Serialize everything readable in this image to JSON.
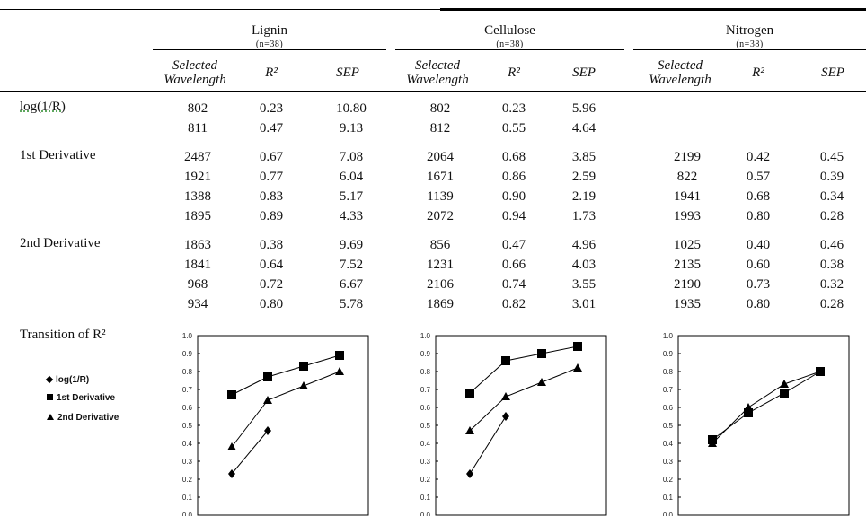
{
  "groups": [
    {
      "name": "Lignin",
      "n": "(n=38)"
    },
    {
      "name": "Cellulose",
      "n": "(n=38)"
    },
    {
      "name": "Nitrogen",
      "n": "(n=38)"
    }
  ],
  "subheaders": {
    "wavelength": "Selected Wavelength",
    "r2": "R²",
    "sep": "SEP"
  },
  "sections": [
    {
      "label": "log(1/R)",
      "rows": [
        [
          "802",
          "0.23",
          "10.80",
          "802",
          "0.23",
          "5.96",
          "",
          "",
          ""
        ],
        [
          "811",
          "0.47",
          "9.13",
          "812",
          "0.55",
          "4.64",
          "",
          "",
          ""
        ]
      ]
    },
    {
      "label": "1st Derivative",
      "rows": [
        [
          "2487",
          "0.67",
          "7.08",
          "2064",
          "0.68",
          "3.85",
          "2199",
          "0.42",
          "0.45"
        ],
        [
          "1921",
          "0.77",
          "6.04",
          "1671",
          "0.86",
          "2.59",
          "822",
          "0.57",
          "0.39"
        ],
        [
          "1388",
          "0.83",
          "5.17",
          "1139",
          "0.90",
          "2.19",
          "1941",
          "0.68",
          "0.34"
        ],
        [
          "1895",
          "0.89",
          "4.33",
          "2072",
          "0.94",
          "1.73",
          "1993",
          "0.80",
          "0.28"
        ]
      ]
    },
    {
      "label": "2nd Derivative",
      "rows": [
        [
          "1863",
          "0.38",
          "9.69",
          "856",
          "0.47",
          "4.96",
          "1025",
          "0.40",
          "0.46"
        ],
        [
          "1841",
          "0.64",
          "7.52",
          "1231",
          "0.66",
          "4.03",
          "2135",
          "0.60",
          "0.38"
        ],
        [
          "968",
          "0.72",
          "6.67",
          "2106",
          "0.74",
          "3.55",
          "2190",
          "0.73",
          "0.32"
        ],
        [
          "934",
          "0.80",
          "5.78",
          "1869",
          "0.82",
          "3.01",
          "1935",
          "0.80",
          "0.28"
        ]
      ]
    }
  ],
  "transition_label": "Transition of R²",
  "legend": [
    "log(1/R)",
    "1st Derivative",
    "2nd Derivative"
  ],
  "chart_data": [
    {
      "type": "line",
      "title": "",
      "ylim": [
        0,
        1.0
      ],
      "yticks": [
        "1.0",
        "0.9",
        "0.8",
        "0.7",
        "0.6",
        "0.5",
        "0.4",
        "0.3",
        "0.2",
        "0.1",
        "0.0"
      ],
      "series": [
        {
          "name": "log(1/R)",
          "marker": "diamond",
          "values": [
            0.23,
            0.47
          ]
        },
        {
          "name": "1st Derivative",
          "marker": "square",
          "values": [
            0.67,
            0.77,
            0.83,
            0.89
          ]
        },
        {
          "name": "2nd Derivative",
          "marker": "triangle",
          "values": [
            0.38,
            0.64,
            0.72,
            0.8
          ]
        }
      ]
    },
    {
      "type": "line",
      "title": "",
      "ylim": [
        0,
        1.0
      ],
      "yticks": [
        "1.0",
        "0.9",
        "0.8",
        "0.7",
        "0.6",
        "0.5",
        "0.4",
        "0.3",
        "0.2",
        "0.1",
        "0.0"
      ],
      "series": [
        {
          "name": "log(1/R)",
          "marker": "diamond",
          "values": [
            0.23,
            0.55
          ]
        },
        {
          "name": "1st Derivative",
          "marker": "square",
          "values": [
            0.68,
            0.86,
            0.9,
            0.94
          ]
        },
        {
          "name": "2nd Derivative",
          "marker": "triangle",
          "values": [
            0.47,
            0.66,
            0.74,
            0.82
          ]
        }
      ]
    },
    {
      "type": "line",
      "title": "",
      "ylim": [
        0,
        1.0
      ],
      "yticks": [
        "1.0",
        "0.9",
        "0.8",
        "0.7",
        "0.6",
        "0.5",
        "0.4",
        "0.3",
        "0.2",
        "0.1",
        "0.0"
      ],
      "series": [
        {
          "name": "1st Derivative",
          "marker": "square",
          "values": [
            0.42,
            0.57,
            0.68,
            0.8
          ]
        },
        {
          "name": "2nd Derivative",
          "marker": "triangle",
          "values": [
            0.4,
            0.6,
            0.73,
            0.8
          ]
        }
      ]
    }
  ]
}
